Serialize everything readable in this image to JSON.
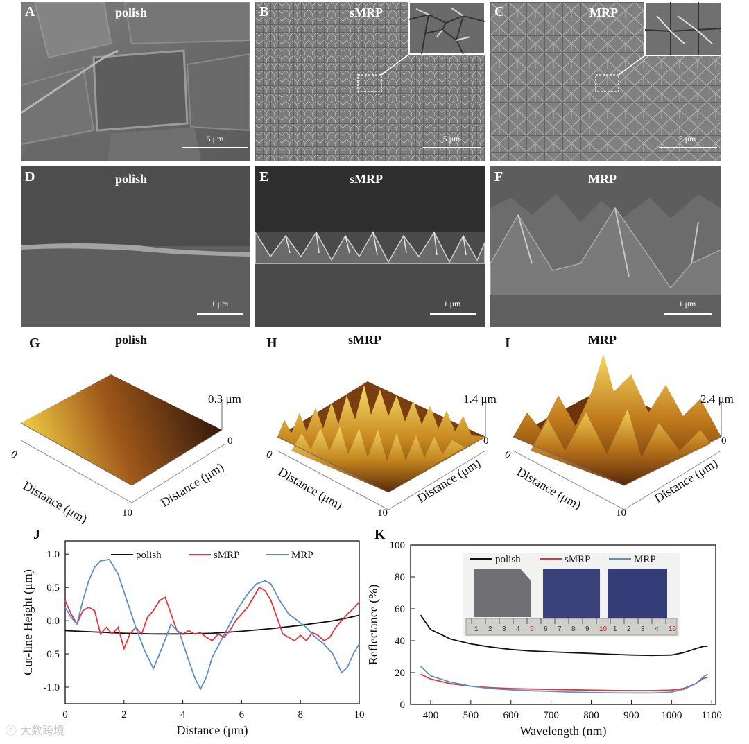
{
  "sem_top": [
    {
      "label": "A",
      "title": "polish",
      "scale": "5 μm"
    },
    {
      "label": "B",
      "title": "sMRP",
      "scale": "5 μm"
    },
    {
      "label": "C",
      "title": "MRP",
      "scale": "5 μm"
    }
  ],
  "sem_cross": [
    {
      "label": "D",
      "title": "polish",
      "scale": "1 μm"
    },
    {
      "label": "E",
      "title": "sMRP",
      "scale": "1 μm"
    },
    {
      "label": "F",
      "title": "MRP",
      "scale": "1 μm"
    }
  ],
  "afm": [
    {
      "label": "G",
      "title": "polish",
      "zmax": "0.3 μm"
    },
    {
      "label": "H",
      "title": "sMRP",
      "zmax": "1.4 μm"
    },
    {
      "label": "I",
      "title": "MRP",
      "zmax": "2.4 μm"
    }
  ],
  "afm_axis": {
    "x_title": "Distance (μm)",
    "y_title": "Distance (μm)",
    "zero": "0",
    "ten": "10"
  },
  "panel_j_label": "J",
  "panel_k_label": "K",
  "colors": {
    "polish": "#111111",
    "sMRP": "#e8323a",
    "MRP": "#5b8fc9"
  },
  "chart_data": [
    {
      "type": "line",
      "xlabel": "Distance (μm)",
      "ylabel": "Cut-line Height (μm)",
      "xlim": [
        0,
        10
      ],
      "ylim": [
        -1.25,
        1.2
      ],
      "xticks": [
        0,
        2,
        4,
        6,
        8,
        10
      ],
      "yticks": [
        "-1.0",
        "-0.5",
        "0.0",
        "0.5",
        "1.0"
      ],
      "ytick_values": [
        -1.0,
        -0.5,
        0.0,
        0.5,
        1.0
      ],
      "legend": "top",
      "series": [
        {
          "name": "polish",
          "x": [
            0,
            1,
            2,
            3,
            4,
            5,
            6,
            7,
            8,
            9,
            9.5,
            10
          ],
          "y": [
            -0.15,
            -0.17,
            -0.19,
            -0.2,
            -0.2,
            -0.19,
            -0.16,
            -0.12,
            -0.07,
            -0.01,
            0.03,
            0.08
          ]
        },
        {
          "name": "sMRP",
          "x": [
            0,
            0.2,
            0.4,
            0.6,
            0.8,
            1.0,
            1.2,
            1.4,
            1.6,
            1.8,
            2.0,
            2.2,
            2.4,
            2.6,
            2.8,
            3.0,
            3.2,
            3.4,
            3.6,
            3.8,
            4.0,
            4.2,
            4.4,
            4.6,
            4.8,
            5.0,
            5.2,
            5.4,
            5.6,
            5.8,
            6.0,
            6.2,
            6.4,
            6.6,
            6.8,
            7.0,
            7.2,
            7.4,
            7.6,
            7.8,
            8.0,
            8.2,
            8.4,
            8.6,
            8.8,
            9.0,
            9.2,
            9.4,
            9.6,
            9.8,
            10
          ],
          "y": [
            0.3,
            0.1,
            -0.05,
            0.15,
            0.2,
            0.15,
            -0.2,
            -0.1,
            -0.2,
            -0.1,
            -0.42,
            -0.2,
            -0.1,
            -0.2,
            0.05,
            0.15,
            0.3,
            0.35,
            0.1,
            -0.15,
            -0.2,
            -0.15,
            -0.2,
            -0.18,
            -0.25,
            -0.3,
            -0.2,
            -0.25,
            -0.15,
            0.0,
            0.1,
            0.2,
            0.35,
            0.5,
            0.45,
            0.3,
            0.05,
            -0.2,
            -0.25,
            -0.3,
            -0.22,
            -0.3,
            -0.18,
            -0.22,
            -0.3,
            -0.25,
            -0.1,
            0.0,
            0.1,
            0.18,
            0.28
          ]
        },
        {
          "name": "MRP",
          "x": [
            0,
            0.2,
            0.4,
            0.6,
            0.8,
            1.0,
            1.2,
            1.5,
            1.8,
            2.1,
            2.4,
            2.7,
            3.0,
            3.3,
            3.6,
            3.9,
            4.2,
            4.4,
            4.6,
            4.8,
            5.0,
            5.3,
            5.6,
            5.9,
            6.2,
            6.5,
            6.8,
            7.0,
            7.3,
            7.6,
            7.9,
            8.2,
            8.5,
            8.8,
            9.1,
            9.4,
            9.6,
            9.8,
            10
          ],
          "y": [
            0.2,
            0.05,
            -0.05,
            0.3,
            0.6,
            0.8,
            0.9,
            0.92,
            0.7,
            0.3,
            -0.1,
            -0.45,
            -0.72,
            -0.4,
            -0.05,
            -0.2,
            -0.6,
            -0.85,
            -1.03,
            -0.85,
            -0.55,
            -0.3,
            -0.05,
            0.2,
            0.4,
            0.55,
            0.6,
            0.55,
            0.3,
            0.1,
            0.0,
            -0.1,
            -0.25,
            -0.35,
            -0.5,
            -0.78,
            -0.7,
            -0.5,
            -0.35
          ]
        }
      ]
    },
    {
      "type": "line",
      "xlabel": "Wavelength (nm)",
      "ylabel": "Reflectance (%)",
      "xlim": [
        350,
        1110
      ],
      "ylim": [
        0,
        100
      ],
      "xticks": [
        400,
        500,
        600,
        700,
        800,
        900,
        1000,
        1100
      ],
      "yticks": [
        0,
        20,
        40,
        60,
        80,
        100
      ],
      "legend": "top-center",
      "inset": "photo of polish, sMRP and MRP wafers on a ruler",
      "ruler_labels": [
        "1",
        "2",
        "3",
        "4",
        "5",
        "6",
        "7",
        "8",
        "9",
        "10",
        "1",
        "2",
        "3",
        "4",
        "15"
      ],
      "series": [
        {
          "name": "polish",
          "x": [
            375,
            400,
            450,
            500,
            550,
            600,
            650,
            700,
            750,
            800,
            850,
            900,
            950,
            1000,
            1030,
            1060,
            1080,
            1090
          ],
          "y": [
            56,
            47,
            41,
            38,
            36,
            34.5,
            33.5,
            33,
            32.5,
            32,
            31.5,
            31,
            30.8,
            31,
            32.5,
            35,
            36.5,
            36.5
          ]
        },
        {
          "name": "sMRP",
          "x": [
            375,
            400,
            450,
            500,
            550,
            600,
            650,
            700,
            750,
            800,
            850,
            900,
            950,
            1000,
            1030,
            1060,
            1080,
            1090
          ],
          "y": [
            19,
            16,
            13,
            11.5,
            10.5,
            10,
            9.7,
            9.5,
            9.2,
            9,
            8.8,
            8.7,
            8.7,
            9,
            10,
            13,
            16.5,
            17
          ]
        },
        {
          "name": "MRP",
          "x": [
            375,
            400,
            450,
            500,
            550,
            600,
            650,
            700,
            750,
            800,
            850,
            900,
            950,
            1000,
            1030,
            1060,
            1080,
            1090
          ],
          "y": [
            24,
            18,
            14,
            11.5,
            10,
            9.2,
            8.6,
            8.2,
            7.8,
            7.5,
            7.3,
            7.2,
            7.2,
            7.8,
            9.5,
            13,
            17.5,
            19
          ]
        }
      ]
    }
  ]
}
